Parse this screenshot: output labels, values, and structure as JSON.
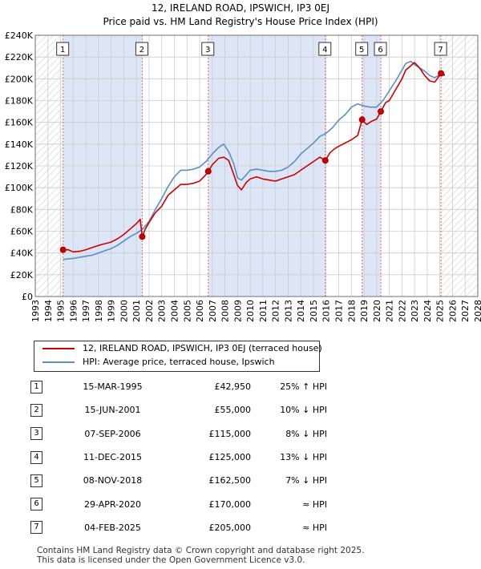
{
  "title": "12, IRELAND ROAD, IPSWICH, IP3 0EJ",
  "subtitle": "Price paid vs. HM Land Registry's House Price Index (HPI)",
  "colors": {
    "price_line": "#cc0000",
    "hpi_line": "#5b8dc6",
    "shade": "#dde6f7",
    "marker_vline": "#e06666",
    "grid": "#cccccc"
  },
  "chart_data": {
    "type": "line",
    "title": "12, IRELAND ROAD, IPSWICH, IP3 0EJ",
    "subtitle": "Price paid vs. HM Land Registry's House Price Index (HPI)",
    "xlim": [
      1993,
      2028
    ],
    "ylim": [
      0,
      240000
    ],
    "x_ticks": [
      1993,
      1994,
      1995,
      1996,
      1997,
      1998,
      1999,
      2000,
      2001,
      2002,
      2003,
      2004,
      2005,
      2006,
      2007,
      2008,
      2009,
      2010,
      2011,
      2012,
      2013,
      2014,
      2015,
      2016,
      2017,
      2018,
      2019,
      2020,
      2021,
      2022,
      2023,
      2024,
      2025,
      2026,
      2027,
      2028
    ],
    "y_ticks": [
      0,
      20000,
      40000,
      60000,
      80000,
      100000,
      120000,
      140000,
      160000,
      180000,
      200000,
      220000,
      240000
    ],
    "y_tick_labels": [
      "£0",
      "£20K",
      "£40K",
      "£60K",
      "£80K",
      "£100K",
      "£120K",
      "£140K",
      "£160K",
      "£180K",
      "£200K",
      "£220K",
      "£240K"
    ],
    "grid": true,
    "hatched_ranges": [
      [
        1993,
        1995.2
      ],
      [
        2025.1,
        2028
      ]
    ],
    "series": [
      {
        "name": "12, IRELAND ROAD, IPSWICH, IP3 0EJ (terraced house)",
        "color": "#cc0000",
        "x": [
          1995.2,
          1995.6,
          1996.0,
          1996.5,
          1997.0,
          1997.5,
          1998.0,
          1998.5,
          1999.0,
          1999.5,
          2000.0,
          2000.5,
          2001.0,
          2001.3,
          2001.46,
          2001.7,
          2002.0,
          2002.5,
          2003.0,
          2003.5,
          2004.0,
          2004.5,
          2005.0,
          2005.5,
          2006.0,
          2006.5,
          2006.68,
          2007.0,
          2007.5,
          2007.9,
          2008.3,
          2008.7,
          2009.0,
          2009.3,
          2009.7,
          2010.0,
          2010.5,
          2011.0,
          2011.5,
          2012.0,
          2012.5,
          2013.0,
          2013.5,
          2014.0,
          2014.5,
          2015.0,
          2015.5,
          2015.94,
          2016.3,
          2016.7,
          2017.0,
          2017.5,
          2018.0,
          2018.5,
          2018.85,
          2019.2,
          2019.6,
          2020.0,
          2020.33,
          2020.7,
          2021.0,
          2021.5,
          2022.0,
          2022.3,
          2022.7,
          2023.0,
          2023.4,
          2023.8,
          2024.2,
          2024.6,
          2025.09,
          2025.4
        ],
        "values": [
          42950,
          43000,
          41000,
          41500,
          43000,
          45000,
          47000,
          48500,
          50000,
          53000,
          57000,
          62000,
          67000,
          71000,
          55000,
          62000,
          68000,
          77000,
          83000,
          93000,
          98000,
          103000,
          103000,
          104000,
          106000,
          112000,
          115000,
          121000,
          127000,
          128000,
          125000,
          112000,
          102000,
          98000,
          105000,
          108000,
          110000,
          108000,
          107000,
          106000,
          108000,
          110000,
          112000,
          116000,
          120000,
          124000,
          128000,
          125000,
          132000,
          136000,
          138000,
          141000,
          144000,
          148000,
          162500,
          158000,
          161000,
          163000,
          170000,
          178000,
          180000,
          190000,
          200000,
          208000,
          212000,
          215000,
          210000,
          203000,
          198000,
          197000,
          205000,
          203000
        ]
      },
      {
        "name": "HPI: Average price, terraced house, Ipswich",
        "color": "#5b8dc6",
        "x": [
          1995.2,
          1995.6,
          1996.0,
          1996.5,
          1997.0,
          1997.5,
          1998.0,
          1998.5,
          1999.0,
          1999.5,
          2000.0,
          2000.5,
          2001.0,
          2001.5,
          2002.0,
          2002.5,
          2003.0,
          2003.5,
          2004.0,
          2004.5,
          2005.0,
          2005.5,
          2006.0,
          2006.5,
          2007.0,
          2007.5,
          2007.9,
          2008.3,
          2008.7,
          2009.0,
          2009.3,
          2009.7,
          2010.0,
          2010.5,
          2011.0,
          2011.5,
          2012.0,
          2012.5,
          2013.0,
          2013.5,
          2014.0,
          2014.5,
          2015.0,
          2015.5,
          2016.0,
          2016.5,
          2017.0,
          2017.5,
          2018.0,
          2018.5,
          2019.0,
          2019.5,
          2020.0,
          2020.5,
          2021.0,
          2021.5,
          2022.0,
          2022.3,
          2022.7,
          2023.0,
          2023.4,
          2023.8,
          2024.2,
          2024.6,
          2025.1,
          2025.4
        ],
        "values": [
          34000,
          34500,
          35000,
          36000,
          37000,
          38000,
          40000,
          42000,
          44000,
          47000,
          51000,
          55000,
          58000,
          62000,
          69000,
          80000,
          90000,
          101000,
          110000,
          116000,
          116000,
          117000,
          119000,
          124000,
          131000,
          137000,
          140000,
          133000,
          122000,
          109000,
          107000,
          112000,
          116000,
          117000,
          116000,
          115000,
          115000,
          116000,
          119000,
          124000,
          131000,
          136000,
          141000,
          147000,
          150000,
          155000,
          162000,
          167000,
          174000,
          177000,
          175000,
          174000,
          174000,
          180000,
          189000,
          198000,
          208000,
          214000,
          216000,
          213000,
          210000,
          207000,
          203000,
          201000,
          205000,
          204000
        ]
      }
    ],
    "sales": [
      {
        "label": "1",
        "x": 1995.2,
        "value": 42950
      },
      {
        "label": "2",
        "x": 2001.46,
        "value": 55000
      },
      {
        "label": "3",
        "x": 2006.68,
        "value": 115000
      },
      {
        "label": "4",
        "x": 2015.94,
        "value": 125000
      },
      {
        "label": "5",
        "x": 2018.85,
        "value": 162500
      },
      {
        "label": "6",
        "x": 2020.33,
        "value": 170000
      },
      {
        "label": "7",
        "x": 2025.09,
        "value": 205000
      }
    ]
  },
  "legend": {
    "price": "12, IRELAND ROAD, IPSWICH, IP3 0EJ (terraced house)",
    "hpi": "HPI: Average price, terraced house, Ipswich"
  },
  "sales_table": [
    {
      "num": "1",
      "date": "15-MAR-1995",
      "price": "£42,950",
      "rel": "25% ↑ HPI"
    },
    {
      "num": "2",
      "date": "15-JUN-2001",
      "price": "£55,000",
      "rel": "10% ↓ HPI"
    },
    {
      "num": "3",
      "date": "07-SEP-2006",
      "price": "£115,000",
      "rel": "8% ↓ HPI"
    },
    {
      "num": "4",
      "date": "11-DEC-2015",
      "price": "£125,000",
      "rel": "13% ↓ HPI"
    },
    {
      "num": "5",
      "date": "08-NOV-2018",
      "price": "£162,500",
      "rel": "7% ↓ HPI"
    },
    {
      "num": "6",
      "date": "29-APR-2020",
      "price": "£170,000",
      "rel": "≈ HPI"
    },
    {
      "num": "7",
      "date": "04-FEB-2025",
      "price": "£205,000",
      "rel": "≈ HPI"
    }
  ],
  "footer": {
    "line1": "Contains HM Land Registry data © Crown copyright and database right 2025.",
    "line2": "This data is licensed under the Open Government Licence v3.0."
  }
}
